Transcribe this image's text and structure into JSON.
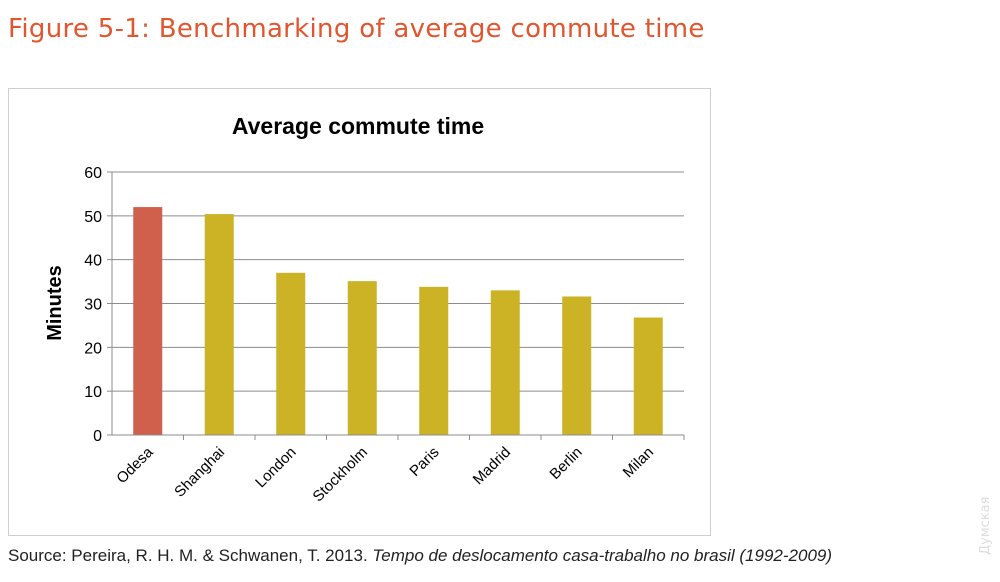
{
  "figure_title": "Figure 5-1: Benchmarking of average commute time",
  "source": {
    "plain": "Source: Pereira, R. H. M. & Schwanen, T. 2013. ",
    "italic": "Tempo de deslocamento casa-trabalho no brasil (1992-2009)"
  },
  "watermark": "Думская",
  "chart_data": {
    "type": "bar",
    "title": "Average commute time",
    "xlabel": "",
    "ylabel": "Minutes",
    "ylim": [
      0,
      60
    ],
    "yticks": [
      0,
      10,
      20,
      30,
      40,
      50,
      60
    ],
    "grid": true,
    "categories": [
      "Odesa",
      "Shanghai",
      "London",
      "Stockholm",
      "Paris",
      "Madrid",
      "Berlin",
      "Milan"
    ],
    "values": [
      52.0,
      50.4,
      37.0,
      35.1,
      33.8,
      33.0,
      31.6,
      26.8
    ],
    "colors": [
      "#d0604c",
      "#cbb325",
      "#cbb325",
      "#cbb325",
      "#cbb325",
      "#cbb325",
      "#cbb325",
      "#cbb325"
    ]
  }
}
